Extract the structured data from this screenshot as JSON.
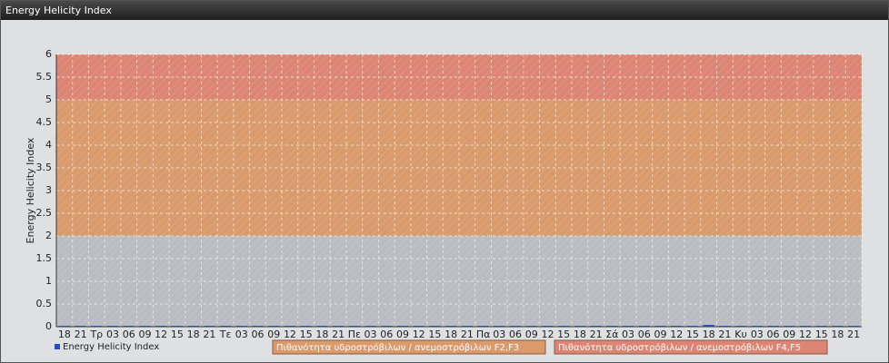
{
  "panel_title": "Energy Helicity Index",
  "chart_data": {
    "type": "bar",
    "y_label": "Energy Helicity Index",
    "categories": [
      "18",
      "21",
      "Τρ",
      "03",
      "06",
      "09",
      "12",
      "15",
      "18",
      "21",
      "Τε",
      "03",
      "06",
      "09",
      "12",
      "15",
      "18",
      "21",
      "Πε",
      "03",
      "06",
      "09",
      "12",
      "15",
      "18",
      "21",
      "Πα",
      "03",
      "06",
      "09",
      "12",
      "15",
      "18",
      "21",
      "Σά",
      "03",
      "06",
      "09",
      "12",
      "15",
      "18",
      "21",
      "Κυ",
      "03",
      "06",
      "09",
      "12",
      "15",
      "18",
      "21"
    ],
    "series": [
      {
        "name": "Energy Helicity Index",
        "color": "#1f4fd0",
        "values": [
          0.02,
          0.02,
          0.02,
          0.02,
          0.02,
          0.02,
          0.02,
          0.02,
          0.02,
          0.02,
          0.02,
          0.02,
          0.02,
          0.02,
          0.02,
          0.02,
          0.02,
          0.02,
          0.02,
          0.02,
          0.02,
          0.02,
          0.02,
          0.02,
          0.02,
          0.02,
          0.02,
          0.02,
          0.02,
          0.02,
          0.02,
          0.02,
          0.02,
          0.02,
          0.02,
          0.02,
          0.02,
          0.02,
          0.02,
          0.02,
          0.04,
          0.02,
          0.02,
          0.02,
          0.02,
          0.02,
          0.02,
          0.02,
          0.02,
          0.02
        ]
      }
    ],
    "ylim": [
      0,
      6
    ],
    "yticks": [
      0,
      0.5,
      1,
      1.5,
      2,
      2.5,
      3,
      3.5,
      4,
      4.5,
      5,
      5.5,
      6
    ],
    "grid": true,
    "plot_background": "#b9bcc0",
    "bands": [
      {
        "from": 2,
        "to": 5,
        "color": "#d99a6c",
        "name": "Πιθανότητα υδροστρόβιλων / ανεμοστρόβιλων F2,F3"
      },
      {
        "from": 5,
        "to": 6,
        "color": "#dc8574",
        "name": "Πιθανότητα υδροστρόβιλων / ανεμοστρόβιλων F4,F5"
      }
    ]
  }
}
